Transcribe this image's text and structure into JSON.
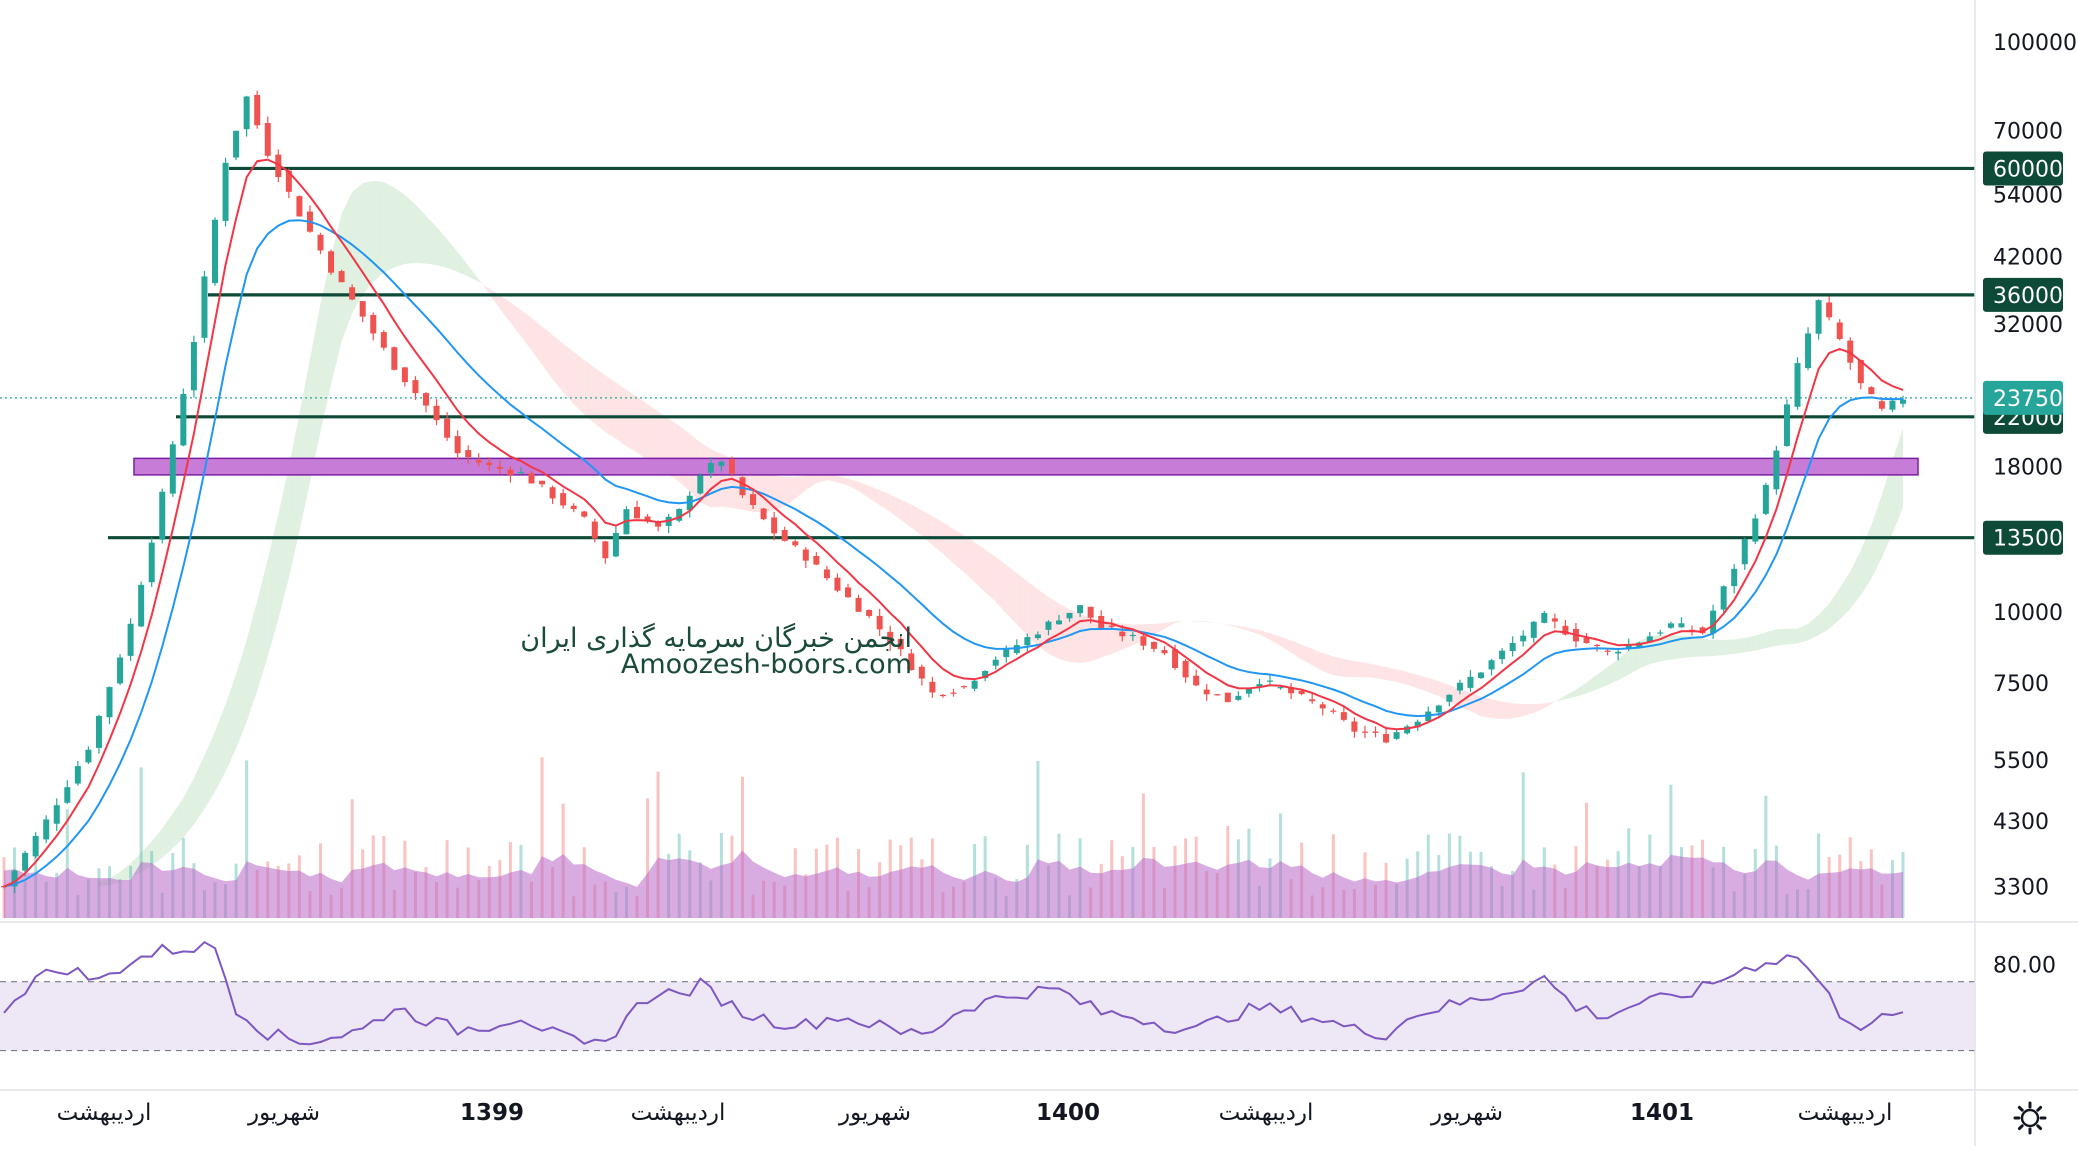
{
  "chart_data": [
    {
      "type": "candlestick",
      "title": "",
      "yscale": "log",
      "ylim": [
        2900,
        115000
      ],
      "grid": false,
      "price_ticks": [
        "100000",
        "70000",
        "54000",
        "42000",
        "32000",
        "18000",
        "10000",
        "7500",
        "5500",
        "4300",
        "3300"
      ],
      "time_ticks": [
        {
          "label": "اردیبهشت",
          "bold": false
        },
        {
          "label": "شهریور",
          "bold": false
        },
        {
          "label": "1399",
          "bold": true
        },
        {
          "label": "اردیبهشت",
          "bold": false
        },
        {
          "label": "شهریور",
          "bold": false
        },
        {
          "label": "1400",
          "bold": true
        },
        {
          "label": "اردیبهشت",
          "bold": false
        },
        {
          "label": "شهریور",
          "bold": false
        },
        {
          "label": "1401",
          "bold": true
        },
        {
          "label": "اردیبهشت",
          "bold": false
        }
      ],
      "levels": [
        {
          "value": 60000,
          "label": "60000",
          "color": "#0d4a38"
        },
        {
          "value": 36000,
          "label": "36000",
          "color": "#0d4a38"
        },
        {
          "value": 22000,
          "label": "22000",
          "color": "#0d4a38"
        },
        {
          "value": 13500,
          "label": "13500",
          "color": "#0d4a38"
        }
      ],
      "last_price": {
        "value": 23750,
        "label": "23750",
        "color": "#26a69a"
      },
      "zone": {
        "low": 17400,
        "high": 18600,
        "color": "#c77dd8"
      },
      "price_path": [
        [
          0,
          3300
        ],
        [
          4,
          4300
        ],
        [
          8,
          5800
        ],
        [
          12,
          9500
        ],
        [
          15,
          16000
        ],
        [
          18,
          30000
        ],
        [
          21,
          62000
        ],
        [
          23,
          80000
        ],
        [
          25,
          64000
        ],
        [
          28,
          50000
        ],
        [
          31,
          40000
        ],
        [
          34,
          33000
        ],
        [
          37,
          27000
        ],
        [
          40,
          23000
        ],
        [
          43,
          19000
        ],
        [
          46,
          18000
        ],
        [
          49,
          17500
        ],
        [
          52,
          16000
        ],
        [
          55,
          14500
        ],
        [
          57,
          12500
        ],
        [
          59,
          15200
        ],
        [
          62,
          14000
        ],
        [
          64,
          15000
        ],
        [
          66,
          17500
        ],
        [
          68,
          18500
        ],
        [
          70,
          16000
        ],
        [
          73,
          13800
        ],
        [
          76,
          12500
        ],
        [
          79,
          11000
        ],
        [
          82,
          9800
        ],
        [
          85,
          8500
        ],
        [
          88,
          7200
        ],
        [
          91,
          7400
        ],
        [
          94,
          8300
        ],
        [
          97,
          9000
        ],
        [
          100,
          9800
        ],
        [
          102,
          10200
        ],
        [
          104,
          9400
        ],
        [
          107,
          9000
        ],
        [
          110,
          8500
        ],
        [
          113,
          7400
        ],
        [
          116,
          7000
        ],
        [
          119,
          7600
        ],
        [
          122,
          7200
        ],
        [
          125,
          6800
        ],
        [
          128,
          6200
        ],
        [
          131,
          6000
        ],
        [
          134,
          6500
        ],
        [
          137,
          7200
        ],
        [
          140,
          7900
        ],
        [
          143,
          8800
        ],
        [
          146,
          9800
        ],
        [
          149,
          9000
        ],
        [
          152,
          8500
        ],
        [
          155,
          8900
        ],
        [
          158,
          9500
        ],
        [
          161,
          9200
        ],
        [
          164,
          12000
        ],
        [
          167,
          16500
        ],
        [
          170,
          27000
        ],
        [
          172,
          35000
        ],
        [
          174,
          30000
        ],
        [
          176,
          25000
        ],
        [
          178,
          22500
        ],
        [
          180,
          23750
        ]
      ],
      "rsi": {
        "band": [
          30,
          70
        ],
        "tick": "80.00",
        "path": [
          [
            0,
            55
          ],
          [
            3,
            72
          ],
          [
            6,
            78
          ],
          [
            9,
            70
          ],
          [
            12,
            82
          ],
          [
            15,
            88
          ],
          [
            18,
            90
          ],
          [
            20,
            90
          ],
          [
            22,
            55
          ],
          [
            25,
            40
          ],
          [
            28,
            35
          ],
          [
            31,
            38
          ],
          [
            34,
            42
          ],
          [
            37,
            55
          ],
          [
            40,
            48
          ],
          [
            43,
            42
          ],
          [
            46,
            45
          ],
          [
            49,
            50
          ],
          [
            52,
            40
          ],
          [
            55,
            32
          ],
          [
            57,
            34
          ],
          [
            59,
            50
          ],
          [
            62,
            65
          ],
          [
            64,
            62
          ],
          [
            66,
            68
          ],
          [
            68,
            60
          ],
          [
            70,
            52
          ],
          [
            73,
            47
          ],
          [
            76,
            45
          ],
          [
            79,
            50
          ],
          [
            82,
            46
          ],
          [
            85,
            40
          ],
          [
            88,
            42
          ],
          [
            91,
            55
          ],
          [
            94,
            60
          ],
          [
            97,
            64
          ],
          [
            100,
            65
          ],
          [
            102,
            58
          ],
          [
            104,
            52
          ],
          [
            107,
            50
          ],
          [
            110,
            45
          ],
          [
            113,
            42
          ],
          [
            116,
            50
          ],
          [
            119,
            55
          ],
          [
            122,
            52
          ],
          [
            125,
            48
          ],
          [
            128,
            42
          ],
          [
            131,
            40
          ],
          [
            134,
            52
          ],
          [
            137,
            56
          ],
          [
            140,
            60
          ],
          [
            143,
            66
          ],
          [
            146,
            72
          ],
          [
            149,
            55
          ],
          [
            152,
            50
          ],
          [
            155,
            58
          ],
          [
            158,
            60
          ],
          [
            161,
            66
          ],
          [
            164,
            75
          ],
          [
            167,
            82
          ],
          [
            170,
            85
          ],
          [
            172,
            70
          ],
          [
            174,
            52
          ],
          [
            176,
            45
          ],
          [
            178,
            48
          ],
          [
            180,
            50
          ]
        ]
      }
    }
  ],
  "watermark": {
    "line1": "انجمن خبرگان سرمایه گذاری ایران",
    "line2": "Amoozesh-boors.com"
  },
  "colors": {
    "up": "#26a69a",
    "down": "#ef5350",
    "ma_fast": "#f23645",
    "ma_slow": "#2196f3",
    "volume": "#ba68c8",
    "rsi": "#7e57c2",
    "rsi_band": "#ede7f6",
    "cloud_green": "#c8e6c9",
    "cloud_red": "#ffcdd2"
  },
  "icons": {
    "settings": "gear-icon"
  }
}
